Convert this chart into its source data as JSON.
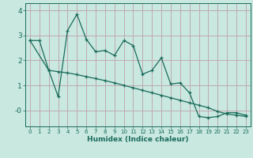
{
  "xlabel": "Humidex (Indice chaleur)",
  "background_color": "#c8e8e0",
  "grid_color": "#c0a0a8",
  "line_color": "#1a6b5a",
  "xlim": [
    -0.5,
    23.5
  ],
  "ylim": [
    -0.65,
    4.3
  ],
  "yticks": [
    0,
    1,
    2,
    3,
    4
  ],
  "ytick_labels": [
    "-0",
    "1",
    "2",
    "3",
    "4"
  ],
  "xticks": [
    0,
    1,
    2,
    3,
    4,
    5,
    6,
    7,
    8,
    9,
    10,
    11,
    12,
    13,
    14,
    15,
    16,
    17,
    18,
    19,
    20,
    21,
    22,
    23
  ],
  "line1_x": [
    0,
    1,
    2,
    3,
    4,
    5,
    6,
    7,
    8,
    9,
    10,
    11,
    12,
    13,
    14,
    15,
    16,
    17,
    18,
    19,
    20,
    21,
    22,
    23
  ],
  "line1_y": [
    2.8,
    2.8,
    1.6,
    0.55,
    3.2,
    3.85,
    2.85,
    2.35,
    2.4,
    2.2,
    2.8,
    2.6,
    1.45,
    1.6,
    2.1,
    1.05,
    1.1,
    0.7,
    -0.25,
    -0.3,
    -0.25,
    -0.1,
    -0.1,
    -0.2
  ],
  "line2_x": [
    0,
    2,
    3,
    4,
    5,
    6,
    7,
    8,
    9,
    10,
    11,
    12,
    13,
    14,
    15,
    16,
    17,
    18,
    19,
    20,
    21,
    22,
    23
  ],
  "line2_y": [
    2.8,
    1.6,
    1.55,
    1.5,
    1.43,
    1.35,
    1.27,
    1.19,
    1.1,
    1.0,
    0.9,
    0.8,
    0.7,
    0.6,
    0.5,
    0.4,
    0.3,
    0.2,
    0.1,
    -0.05,
    -0.15,
    -0.2,
    -0.25
  ]
}
